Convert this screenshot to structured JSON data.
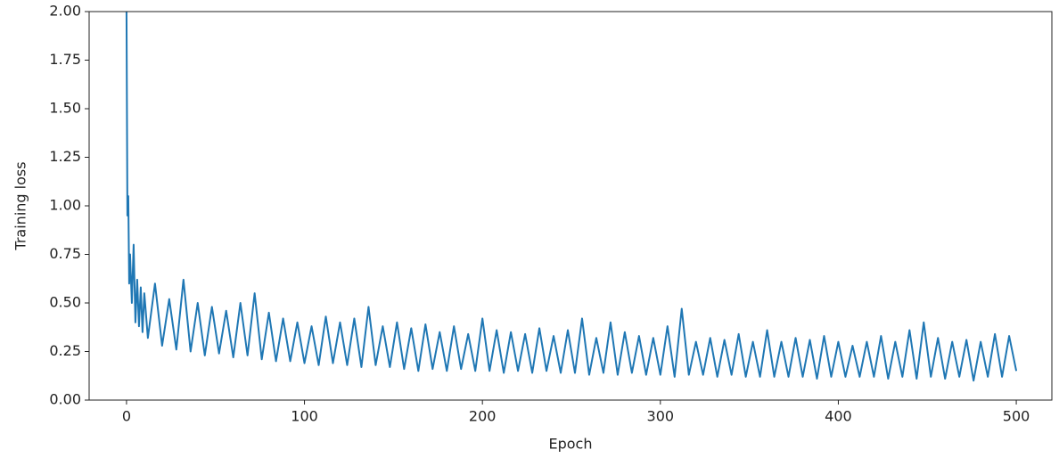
{
  "chart_data": {
    "type": "line",
    "xlabel": "Epoch",
    "ylabel": "Training loss",
    "xlim": [
      -21,
      520
    ],
    "ylim": [
      0,
      2
    ],
    "xticks": [
      0,
      100,
      200,
      300,
      400,
      500
    ],
    "yticks": [
      {
        "value": 0,
        "label": "0.00"
      },
      {
        "value": 0.25,
        "label": "0.25"
      },
      {
        "value": 0.5,
        "label": "0.50"
      },
      {
        "value": 0.75,
        "label": "0.75"
      },
      {
        "value": 1,
        "label": "1.00"
      },
      {
        "value": 1.25,
        "label": "1.25"
      },
      {
        "value": 1.5,
        "label": "1.50"
      },
      {
        "value": 1.75,
        "label": "1.75"
      },
      {
        "value": 2,
        "label": "2.00"
      }
    ],
    "x": [
      0,
      0.5,
      1,
      1.5,
      2,
      3,
      4,
      5,
      6,
      7,
      8,
      9,
      10,
      12,
      16,
      20,
      24,
      28,
      32,
      36,
      40,
      44,
      48,
      52,
      56,
      60,
      64,
      68,
      72,
      76,
      80,
      84,
      88,
      92,
      96,
      100,
      104,
      108,
      112,
      116,
      120,
      124,
      128,
      132,
      136,
      140,
      144,
      148,
      152,
      156,
      160,
      164,
      168,
      172,
      176,
      180,
      184,
      188,
      192,
      196,
      200,
      204,
      208,
      212,
      216,
      220,
      224,
      228,
      232,
      236,
      240,
      244,
      248,
      252,
      256,
      260,
      264,
      268,
      272,
      276,
      280,
      284,
      288,
      292,
      296,
      300,
      304,
      308,
      312,
      316,
      320,
      324,
      328,
      332,
      336,
      340,
      344,
      348,
      352,
      356,
      360,
      364,
      368,
      372,
      376,
      380,
      384,
      388,
      392,
      396,
      400,
      404,
      408,
      412,
      416,
      420,
      424,
      428,
      432,
      436,
      440,
      444,
      448,
      452,
      456,
      460,
      464,
      468,
      472,
      476,
      480,
      484,
      488,
      492,
      496,
      500
    ],
    "series": [
      {
        "color": "#1f77b4",
        "values": [
          2.0,
          0.95,
          1.05,
          0.6,
          0.75,
          0.5,
          0.8,
          0.4,
          0.62,
          0.38,
          0.58,
          0.35,
          0.55,
          0.32,
          0.6,
          0.28,
          0.52,
          0.26,
          0.62,
          0.25,
          0.5,
          0.23,
          0.48,
          0.24,
          0.46,
          0.22,
          0.5,
          0.23,
          0.55,
          0.21,
          0.45,
          0.2,
          0.42,
          0.2,
          0.4,
          0.19,
          0.38,
          0.18,
          0.43,
          0.19,
          0.4,
          0.18,
          0.42,
          0.17,
          0.48,
          0.18,
          0.38,
          0.17,
          0.4,
          0.16,
          0.37,
          0.15,
          0.39,
          0.16,
          0.35,
          0.15,
          0.38,
          0.16,
          0.34,
          0.15,
          0.42,
          0.15,
          0.36,
          0.14,
          0.35,
          0.15,
          0.34,
          0.14,
          0.37,
          0.15,
          0.33,
          0.14,
          0.36,
          0.14,
          0.42,
          0.13,
          0.32,
          0.14,
          0.4,
          0.13,
          0.35,
          0.14,
          0.33,
          0.13,
          0.32,
          0.13,
          0.38,
          0.12,
          0.47,
          0.13,
          0.3,
          0.13,
          0.32,
          0.12,
          0.31,
          0.13,
          0.34,
          0.12,
          0.3,
          0.12,
          0.36,
          0.12,
          0.3,
          0.12,
          0.32,
          0.12,
          0.31,
          0.11,
          0.33,
          0.12,
          0.3,
          0.12,
          0.28,
          0.12,
          0.3,
          0.12,
          0.33,
          0.11,
          0.3,
          0.12,
          0.36,
          0.11,
          0.4,
          0.12,
          0.32,
          0.11,
          0.3,
          0.12,
          0.31,
          0.1,
          0.3,
          0.12,
          0.34,
          0.12,
          0.33,
          0.15
        ]
      }
    ]
  }
}
